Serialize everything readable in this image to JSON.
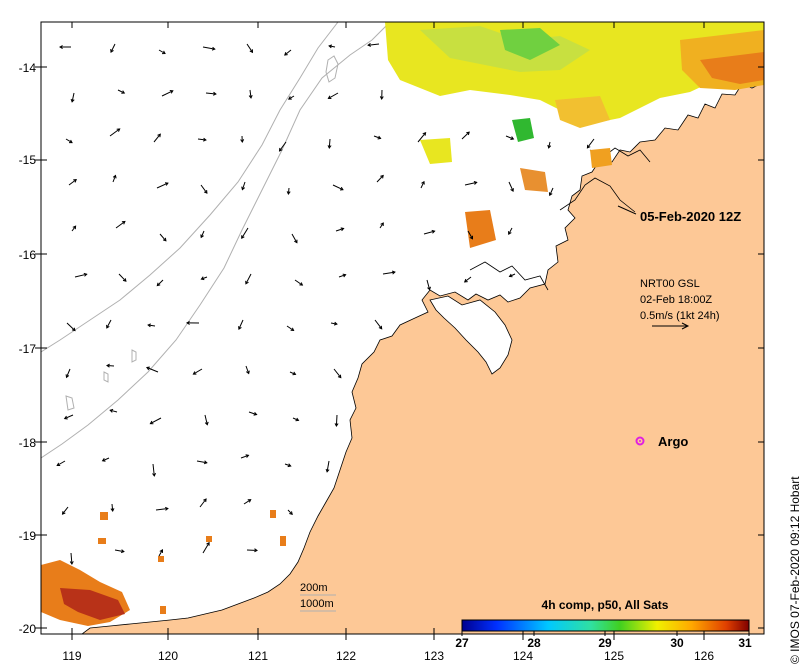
{
  "map": {
    "lon_ticks": [
      "119",
      "120",
      "121",
      "122",
      "123",
      "124",
      "125",
      "126"
    ],
    "lat_ticks": [
      "-14",
      "-15",
      "-16",
      "-17",
      "-18",
      "-19",
      "-20"
    ],
    "timestamp_label": "05-Feb-2020 12Z",
    "current_info": {
      "line1": "NRT00 GSL",
      "line2": "02-Feb 18:00Z",
      "line3": "0.5m/s (1kt 24h)"
    },
    "argo_label": "Argo",
    "contours": {
      "c200": "200m",
      "c1000": "1000m"
    },
    "colorbar": {
      "title": "4h comp, p50, All Sats",
      "ticks": [
        "27",
        "28",
        "29",
        "30",
        "31"
      ]
    },
    "credit": "© IMOS 07-Feb-2020 09:12 Hobart",
    "colors": {
      "land": "#fdc896",
      "sst_warm": "#e87d1a",
      "sst_hot": "#b83218",
      "argo": "#e020e0"
    }
  }
}
